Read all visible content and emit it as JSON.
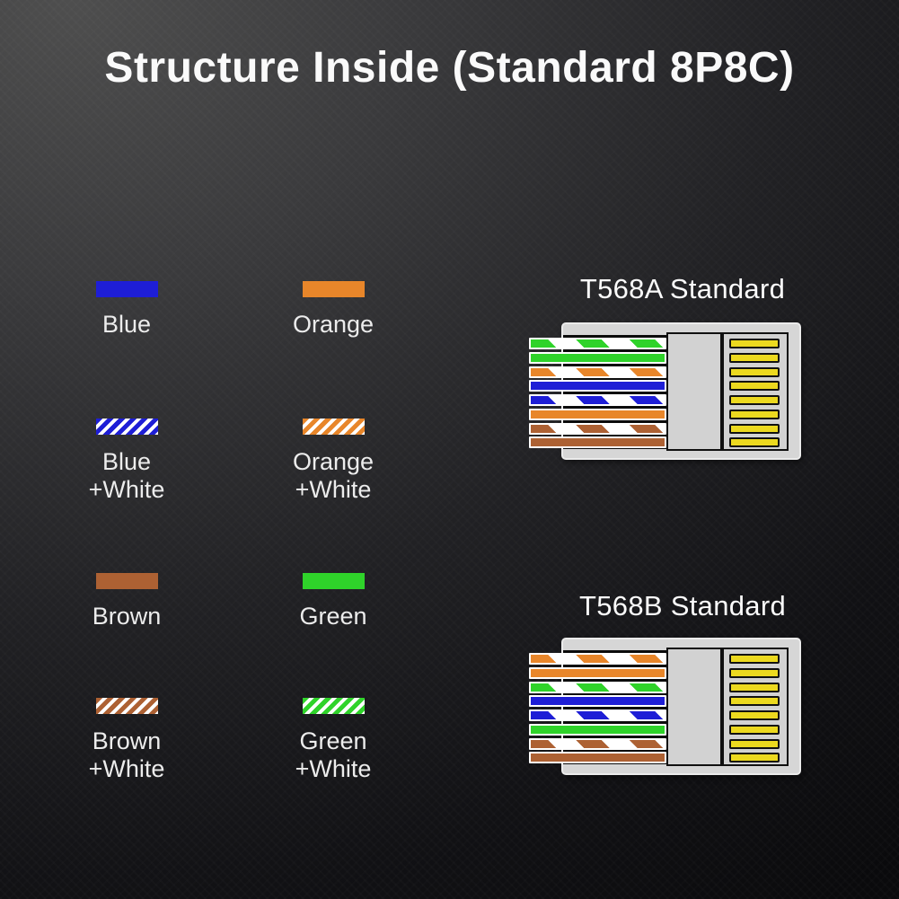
{
  "page": {
    "title": "Structure Inside (Standard 8P8C)"
  },
  "colors": {
    "blue": "#1e1ed6",
    "orange": "#e8862a",
    "green": "#2fd32a",
    "brown": "#ad6133",
    "white": "#ffffff",
    "pin_yellow": "#ecd91f",
    "body_gray": "#d6d6d6",
    "background_dark": "#0a0a0c",
    "background_light": "#4e4e4e"
  },
  "legend": {
    "items": [
      {
        "label": "Blue",
        "label2": "",
        "color_key": "blue",
        "striped": false
      },
      {
        "label": "Orange",
        "label2": "",
        "color_key": "orange",
        "striped": false
      },
      {
        "label": "Blue",
        "label2": "+White",
        "color_key": "blue",
        "striped": true
      },
      {
        "label": "Orange",
        "label2": "+White",
        "color_key": "orange",
        "striped": true
      },
      {
        "label": "Brown",
        "label2": "",
        "color_key": "brown",
        "striped": false
      },
      {
        "label": "Green",
        "label2": "",
        "color_key": "green",
        "striped": false
      },
      {
        "label": "Brown",
        "label2": "+White",
        "color_key": "brown",
        "striped": true
      },
      {
        "label": "Green",
        "label2": "+White",
        "color_key": "green",
        "striped": true
      }
    ]
  },
  "connectors": [
    {
      "label": "T568A Standard",
      "pin_count": 8,
      "wires_top_to_bottom": [
        "green+white",
        "green",
        "orange+white",
        "blue",
        "blue+white",
        "orange",
        "brown+white",
        "brown"
      ]
    },
    {
      "label": "T568B Standard",
      "pin_count": 8,
      "wires_top_to_bottom": [
        "orange+white",
        "orange",
        "green+white",
        "blue",
        "blue+white",
        "green",
        "brown+white",
        "brown"
      ]
    }
  ]
}
